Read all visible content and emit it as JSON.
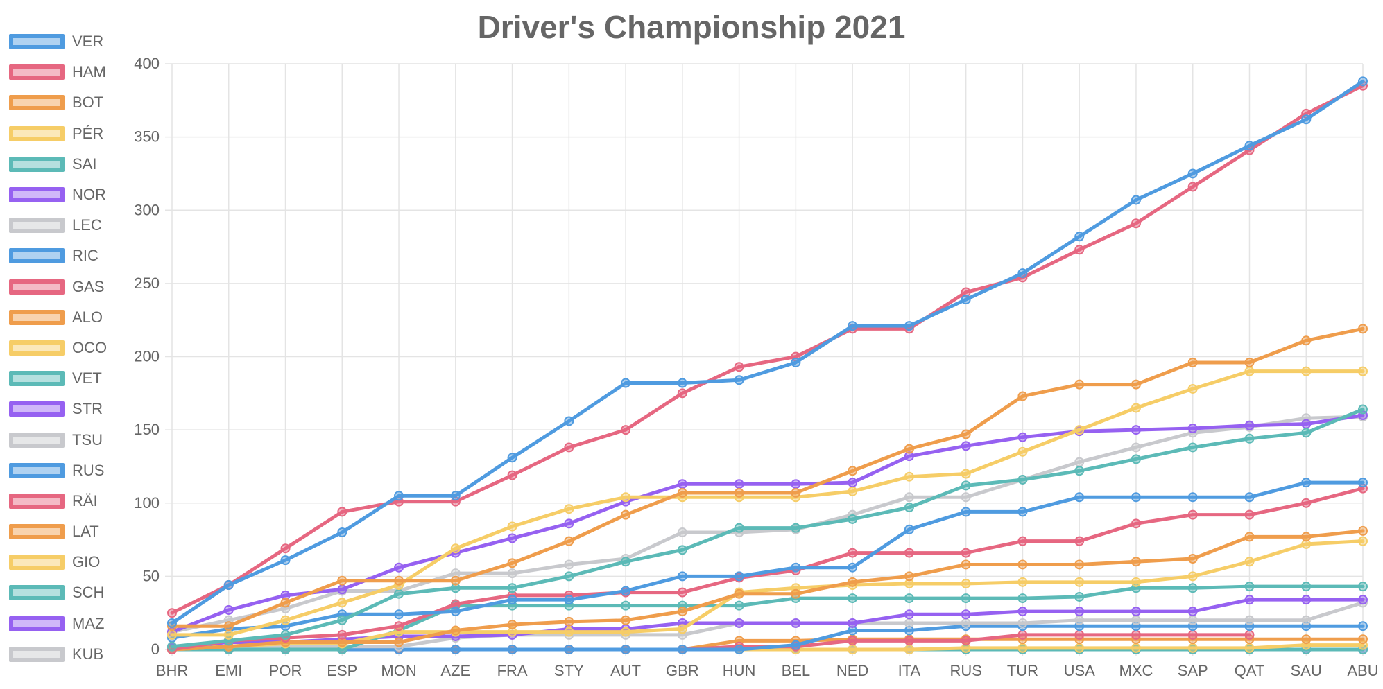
{
  "chart_data": {
    "type": "line",
    "title": "Driver's Championship 2021",
    "xlabel": "",
    "ylabel": "",
    "ylim": [
      0,
      400
    ],
    "yticks": [
      0,
      50,
      100,
      150,
      200,
      250,
      300,
      350,
      400
    ],
    "grid": true,
    "legend_position": "left",
    "categories": [
      "BHR",
      "EMI",
      "POR",
      "ESP",
      "MON",
      "AZE",
      "FRA",
      "STY",
      "AUT",
      "GBR",
      "HUN",
      "BEL",
      "NED",
      "ITA",
      "RUS",
      "TUR",
      "USA",
      "MXC",
      "SAP",
      "QAT",
      "SAU",
      "ABU"
    ],
    "series": [
      {
        "name": "VER",
        "color": "#4f9be0",
        "values": [
          18,
          44,
          61,
          80,
          105,
          105,
          131,
          156,
          182,
          182,
          184,
          196,
          221,
          221,
          239,
          257,
          282,
          307,
          325,
          344,
          362,
          388
        ]
      },
      {
        "name": "HAM",
        "color": "#e66781",
        "values": [
          25,
          44,
          69,
          94,
          101,
          101,
          119,
          138,
          150,
          175,
          193,
          200,
          219,
          219,
          244,
          254,
          273,
          291,
          316,
          341,
          366,
          385
        ]
      },
      {
        "name": "BOT",
        "color": "#ef9d4c",
        "values": [
          16,
          16,
          32,
          47,
          47,
          47,
          59,
          74,
          92,
          107,
          107,
          107,
          122,
          137,
          147,
          173,
          181,
          181,
          196,
          196,
          211,
          219
        ]
      },
      {
        "name": "PÉR",
        "color": "#f6cd67",
        "values": [
          10,
          10,
          20,
          32,
          44,
          69,
          84,
          96,
          104,
          104,
          104,
          104,
          108,
          118,
          120,
          135,
          150,
          165,
          178,
          190,
          190,
          190
        ]
      },
      {
        "name": "SAI",
        "color": "#5cbab7",
        "values": [
          2,
          6,
          10,
          20,
          38,
          42,
          42,
          50,
          60,
          68,
          83,
          83,
          89,
          97,
          112,
          116,
          122,
          130,
          138,
          144,
          148,
          164
        ]
      },
      {
        "name": "NOR",
        "color": "#9661f1",
        "values": [
          12,
          27,
          37,
          41,
          56,
          66,
          76,
          86,
          101,
          113,
          113,
          113,
          114,
          132,
          139,
          145,
          149,
          150,
          151,
          153,
          154,
          160
        ]
      },
      {
        "name": "LEC",
        "color": "#c8c9cd",
        "values": [
          12,
          20,
          28,
          40,
          40,
          52,
          52,
          58,
          62,
          80,
          80,
          82,
          92,
          104,
          104,
          116,
          128,
          138,
          148,
          152,
          158,
          159
        ]
      },
      {
        "name": "RIC",
        "color": "#4f9be0",
        "values": [
          8,
          14,
          16,
          24,
          24,
          26,
          34,
          34,
          40,
          50,
          50,
          56,
          56,
          82,
          94,
          94,
          104,
          104,
          104,
          104,
          114,
          114
        ]
      },
      {
        "name": "GAS",
        "color": "#e66781",
        "values": [
          0,
          6,
          8,
          10,
          16,
          31,
          37,
          37,
          39,
          39,
          49,
          54,
          66,
          66,
          66,
          74,
          74,
          86,
          92,
          92,
          100,
          110
        ]
      },
      {
        "name": "ALO",
        "color": "#ef9d4c",
        "values": [
          0,
          2,
          5,
          5,
          5,
          13,
          17,
          19,
          20,
          26,
          38,
          38,
          46,
          50,
          58,
          58,
          58,
          60,
          62,
          77,
          77,
          81
        ]
      },
      {
        "name": "OCO",
        "color": "#f6cd67",
        "values": [
          0,
          2,
          4,
          4,
          12,
          12,
          12,
          12,
          12,
          14,
          39,
          42,
          44,
          45,
          45,
          46,
          46,
          46,
          50,
          60,
          72,
          74
        ]
      },
      {
        "name": "VET",
        "color": "#5cbab7",
        "values": [
          0,
          0,
          0,
          0,
          13,
          30,
          30,
          30,
          30,
          30,
          30,
          35,
          35,
          35,
          35,
          35,
          36,
          42,
          42,
          43,
          43,
          43
        ]
      },
      {
        "name": "STR",
        "color": "#9661f1",
        "values": [
          1,
          5,
          5,
          7,
          9,
          9,
          10,
          14,
          14,
          18,
          18,
          18,
          18,
          24,
          24,
          26,
          26,
          26,
          26,
          34,
          34,
          34
        ]
      },
      {
        "name": "TSU",
        "color": "#c8c9cd",
        "values": [
          2,
          2,
          2,
          2,
          2,
          8,
          10,
          10,
          10,
          10,
          18,
          18,
          18,
          18,
          18,
          18,
          20,
          20,
          20,
          20,
          20,
          32
        ]
      },
      {
        "name": "RUS",
        "color": "#4f9be0",
        "values": [
          0,
          0,
          0,
          0,
          0,
          0,
          0,
          0,
          0,
          0,
          0,
          3,
          13,
          13,
          16,
          16,
          16,
          16,
          16,
          16,
          16,
          16
        ]
      },
      {
        "name": "RÄI",
        "color": "#e66781",
        "values": [
          0,
          0,
          0,
          0,
          0,
          0,
          0,
          0,
          0,
          0,
          2,
          2,
          6,
          6,
          6,
          10,
          10,
          10,
          10,
          10,
          null,
          null
        ]
      },
      {
        "name": "LAT",
        "color": "#ef9d4c",
        "values": [
          0,
          0,
          0,
          0,
          0,
          0,
          0,
          0,
          0,
          0,
          6,
          6,
          7,
          7,
          7,
          7,
          7,
          7,
          7,
          7,
          7,
          7
        ]
      },
      {
        "name": "GIO",
        "color": "#f6cd67",
        "values": [
          0,
          0,
          0,
          0,
          0,
          0,
          0,
          0,
          0,
          0,
          0,
          0,
          0,
          0,
          1,
          1,
          1,
          1,
          1,
          1,
          3,
          3
        ]
      },
      {
        "name": "SCH",
        "color": "#5cbab7",
        "values": [
          0,
          0,
          0,
          0,
          0,
          0,
          0,
          0,
          0,
          0,
          0,
          0,
          0,
          0,
          0,
          0,
          0,
          0,
          0,
          0,
          0,
          0
        ]
      },
      {
        "name": "MAZ",
        "color": "#9661f1",
        "values": [
          0,
          0,
          0,
          0,
          0,
          0,
          0,
          0,
          0,
          0,
          0,
          0,
          0,
          0,
          0,
          0,
          0,
          0,
          0,
          0,
          0,
          0
        ]
      },
      {
        "name": "KUB",
        "color": "#c8c9cd",
        "values": [
          null,
          null,
          null,
          null,
          null,
          null,
          null,
          null,
          null,
          null,
          null,
          0,
          0,
          null,
          null,
          null,
          null,
          null,
          null,
          null,
          null,
          null
        ]
      }
    ]
  }
}
